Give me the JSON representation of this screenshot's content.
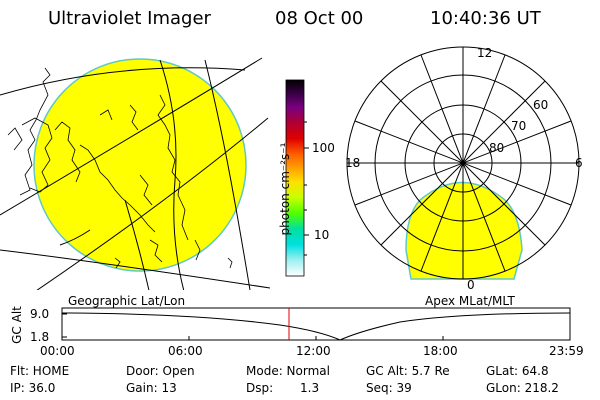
{
  "header": {
    "instrument": "Ultraviolet Imager",
    "date": "08 Oct 00",
    "time": "10:40:36 UT"
  },
  "geo_panel": {
    "label": "Geographic Lat/Lon",
    "fill_color": "#ffff00",
    "boundary_color": "#5ec8c8"
  },
  "colorbar": {
    "unit_label": "photon cm⁻²s⁻¹",
    "ticks": [
      "100",
      "10"
    ],
    "colors": [
      "#000000",
      "#3a0045",
      "#7a0080",
      "#b00030",
      "#e00000",
      "#ff6000",
      "#ffa000",
      "#ffe000",
      "#c8ff00",
      "#50ff00",
      "#00e0a0",
      "#00e0e0",
      "#a0f0f0",
      "#ffffff"
    ]
  },
  "polar_panel": {
    "label": "Apex MLat/MLT",
    "mlt_labels": {
      "top": "12",
      "left": "18",
      "right": "6",
      "bottom": "0"
    },
    "lat_labels": [
      "60",
      "70",
      "80"
    ]
  },
  "altitude_plot": {
    "y_label": "GC Alt",
    "y_ticks": [
      "9.0",
      "1.8"
    ],
    "x_ticks": [
      "00:00",
      "06:00",
      "12:00",
      "18:00",
      "23:59"
    ],
    "current_time_fraction": 0.446,
    "marker_color": "#e00000"
  },
  "info": {
    "flt": "Flt: HOME",
    "ip": "IP: 36.0",
    "door": "Door: Open",
    "gain": "Gain: 13",
    "mode": "Mode: Normal",
    "dsp_label": "Dsp:",
    "dsp_value": "1.3",
    "gc_alt": "GC Alt: 5.7 Re",
    "seq": "Seq: 39",
    "glat": "GLat:  64.8",
    "glon": "GLon: 218.2"
  }
}
